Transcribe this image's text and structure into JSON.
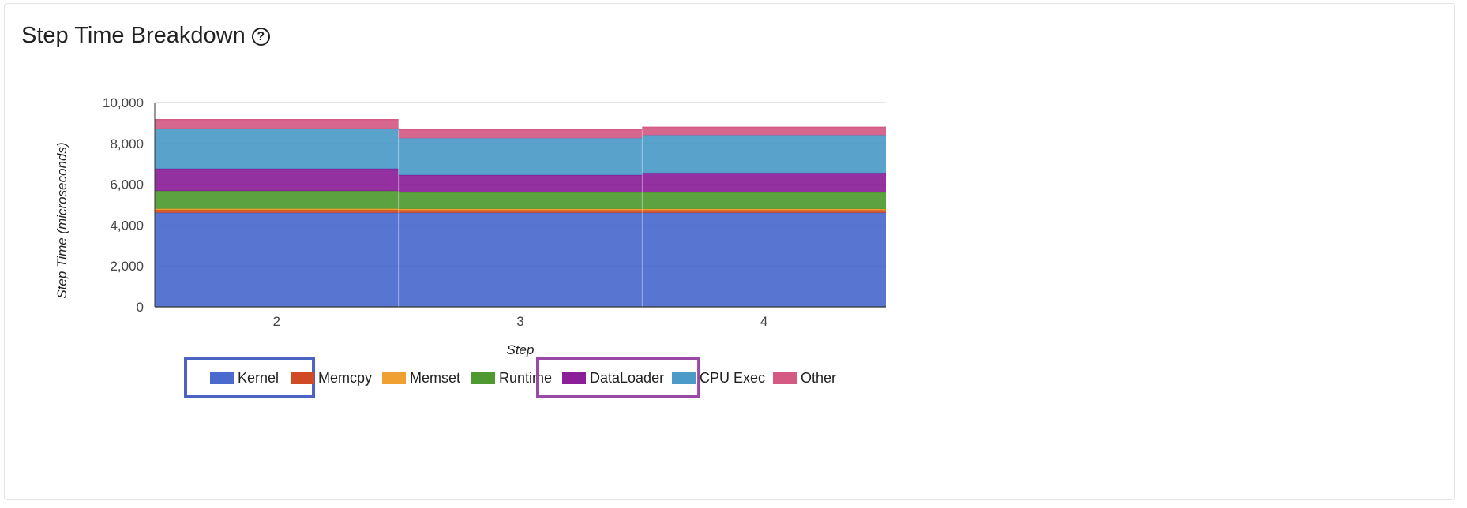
{
  "header": {
    "title": "Step Time Breakdown",
    "help_icon": "question-circle-icon"
  },
  "chart_data": {
    "type": "area",
    "stacked": true,
    "stepped": true,
    "xlabel": "Step",
    "ylabel": "Step Time (microseconds)",
    "categories": [
      "2",
      "3",
      "4"
    ],
    "ylim": [
      0,
      10000
    ],
    "yticks": [
      "0",
      "2,000",
      "4,000",
      "6,000",
      "8,000",
      "10,000"
    ],
    "ytick_values": [
      0,
      2000,
      4000,
      6000,
      8000,
      10000
    ],
    "grid": true,
    "legend_position": "bottom",
    "series": [
      {
        "name": "Kernel",
        "color": "#4a6acd",
        "values": [
          4600,
          4600,
          4600
        ]
      },
      {
        "name": "Memcpy",
        "color": "#d04a24",
        "values": [
          140,
          130,
          130
        ]
      },
      {
        "name": "Memset",
        "color": "#f0a030",
        "values": [
          60,
          60,
          60
        ]
      },
      {
        "name": "Runtime",
        "color": "#4f9a30",
        "values": [
          870,
          810,
          810
        ]
      },
      {
        "name": "DataLoader",
        "color": "#8a1f98",
        "values": [
          1090,
          850,
          950
        ]
      },
      {
        "name": "CPU Exec",
        "color": "#4b9ac8",
        "values": [
          1950,
          1800,
          1850
        ]
      },
      {
        "name": "Other",
        "color": "#d45a84",
        "values": [
          450,
          420,
          390
        ]
      }
    ],
    "highlighted_legend_items": [
      "Kernel",
      "DataLoader"
    ],
    "highlight_colors": {
      "Kernel": "#4a63c2",
      "DataLoader": "#9a4aa6"
    }
  }
}
